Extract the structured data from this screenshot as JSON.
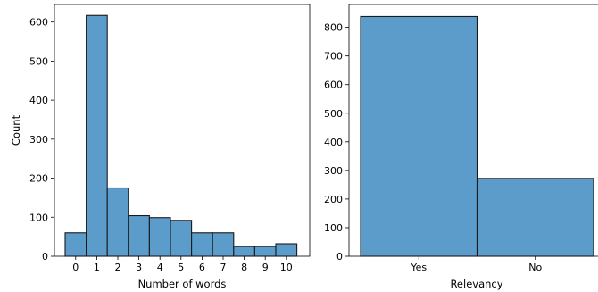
{
  "chart_data": [
    {
      "type": "bar",
      "subtype": "histogram",
      "xlabel": "Number of words",
      "ylabel": "Count",
      "categories": [
        "0",
        "1",
        "2",
        "3",
        "4",
        "5",
        "6",
        "7",
        "8",
        "9",
        "10"
      ],
      "values": [
        60,
        617,
        175,
        104,
        99,
        92,
        60,
        60,
        25,
        25,
        32
      ],
      "ylim": [
        0,
        645
      ],
      "yticks": [
        0,
        100,
        200,
        300,
        400,
        500,
        600
      ],
      "bar_color": "#5b9ccb",
      "edge_color": "#1a1a1a",
      "grid": false
    },
    {
      "type": "bar",
      "subtype": "histogram",
      "xlabel": "Relevancy",
      "ylabel": "",
      "categories": [
        "Yes",
        "No"
      ],
      "values": [
        838,
        272
      ],
      "ylim": [
        0,
        880
      ],
      "yticks": [
        0,
        100,
        200,
        300,
        400,
        500,
        600,
        700,
        800
      ],
      "bar_color": "#5b9ccb",
      "edge_color": "#1a1a1a",
      "grid": false
    }
  ]
}
